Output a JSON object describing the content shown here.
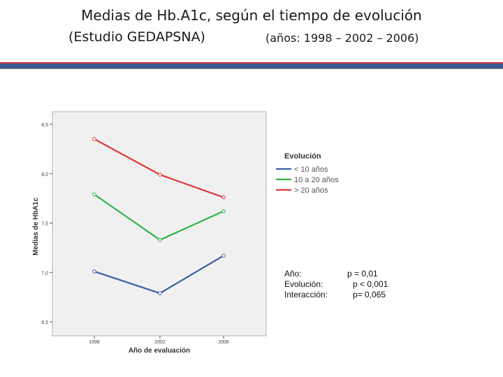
{
  "header": {
    "title_line1": "Medias de Hb.A1c, según el tiempo de evolución",
    "title_line2": "(Estudio GEDAPSNA)",
    "title_years": "(años: 1998 – 2002 – 2006)"
  },
  "colors": {
    "bar_fill": "#3b5a93",
    "bar_accent": "#d43b3b",
    "plot_bg": "#f0f0f0"
  },
  "chart_data": {
    "type": "line",
    "title": "",
    "xlabel": "Año de evaluación",
    "ylabel": "Medias de HbA1c",
    "categories": [
      "1998",
      "2002",
      "2006"
    ],
    "y_ticks": [
      "6,5",
      "7,0",
      "7,5",
      "8,0",
      "8,5"
    ],
    "ylim": [
      6.5,
      8.5
    ],
    "grid": false,
    "legend_title": "Evolución",
    "legend_position": "right",
    "series": [
      {
        "name": "< 10 años",
        "color": "#3b5fa6",
        "values": [
          7.01,
          6.79,
          7.17
        ]
      },
      {
        "name": "10 a 20 años",
        "color": "#2fb34a",
        "values": [
          7.79,
          7.33,
          7.62
        ]
      },
      {
        "name": "> 20 años",
        "color": "#e0363c",
        "values": [
          8.35,
          7.99,
          7.76
        ]
      }
    ]
  },
  "stats": [
    {
      "label": "Año:",
      "value": "p = 0,01"
    },
    {
      "label": "Evolución:",
      "value": "p < 0,001"
    },
    {
      "label": "Interacción:",
      "value": "p= 0,065"
    }
  ]
}
